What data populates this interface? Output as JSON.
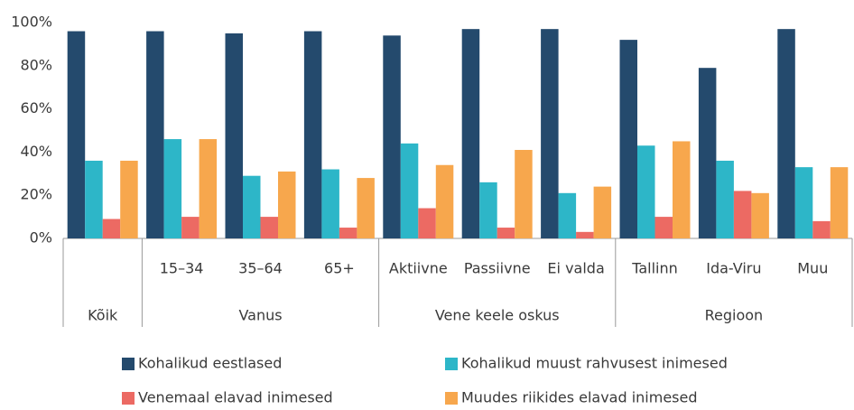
{
  "chart_data": {
    "type": "bar",
    "groups": [
      {
        "name": "Kõik",
        "categories": [
          null
        ]
      },
      {
        "name": "Vanus",
        "categories": [
          "15–34",
          "35–64",
          "65+"
        ]
      },
      {
        "name": "Vene keele oskus",
        "categories": [
          "Aktiivne",
          "Passiivne",
          "Ei valda"
        ]
      },
      {
        "name": "Regioon",
        "categories": [
          "Tallinn",
          "Ida-Viru",
          "Muu"
        ]
      }
    ],
    "series": [
      {
        "name": "Kohalikud eestlased",
        "color": "#244a6d",
        "values": [
          96,
          96,
          95,
          96,
          94,
          97,
          97,
          92,
          79,
          97
        ]
      },
      {
        "name": "Kohalikud muust rahvusest inimesed",
        "color": "#2db6c8",
        "values": [
          36,
          46,
          29,
          32,
          44,
          26,
          21,
          43,
          36,
          33
        ]
      },
      {
        "name": "Venemaal elavad inimesed",
        "color": "#ec6a63",
        "values": [
          9,
          10,
          10,
          5,
          14,
          5,
          3,
          10,
          22,
          8
        ]
      },
      {
        "name": "Muudes riikides elavad inimesed",
        "color": "#f7a74d",
        "values": [
          36,
          46,
          31,
          28,
          34,
          41,
          24,
          45,
          21,
          33
        ]
      }
    ],
    "ylim": [
      0,
      100
    ],
    "yticks": [
      {
        "value": 0,
        "label": "0%"
      },
      {
        "value": 20,
        "label": "20%"
      },
      {
        "value": 40,
        "label": "40%"
      },
      {
        "value": 60,
        "label": "60%"
      },
      {
        "value": 80,
        "label": "80%"
      },
      {
        "value": 100,
        "label": "100%"
      }
    ],
    "grid": false,
    "legend": "bottom"
  }
}
